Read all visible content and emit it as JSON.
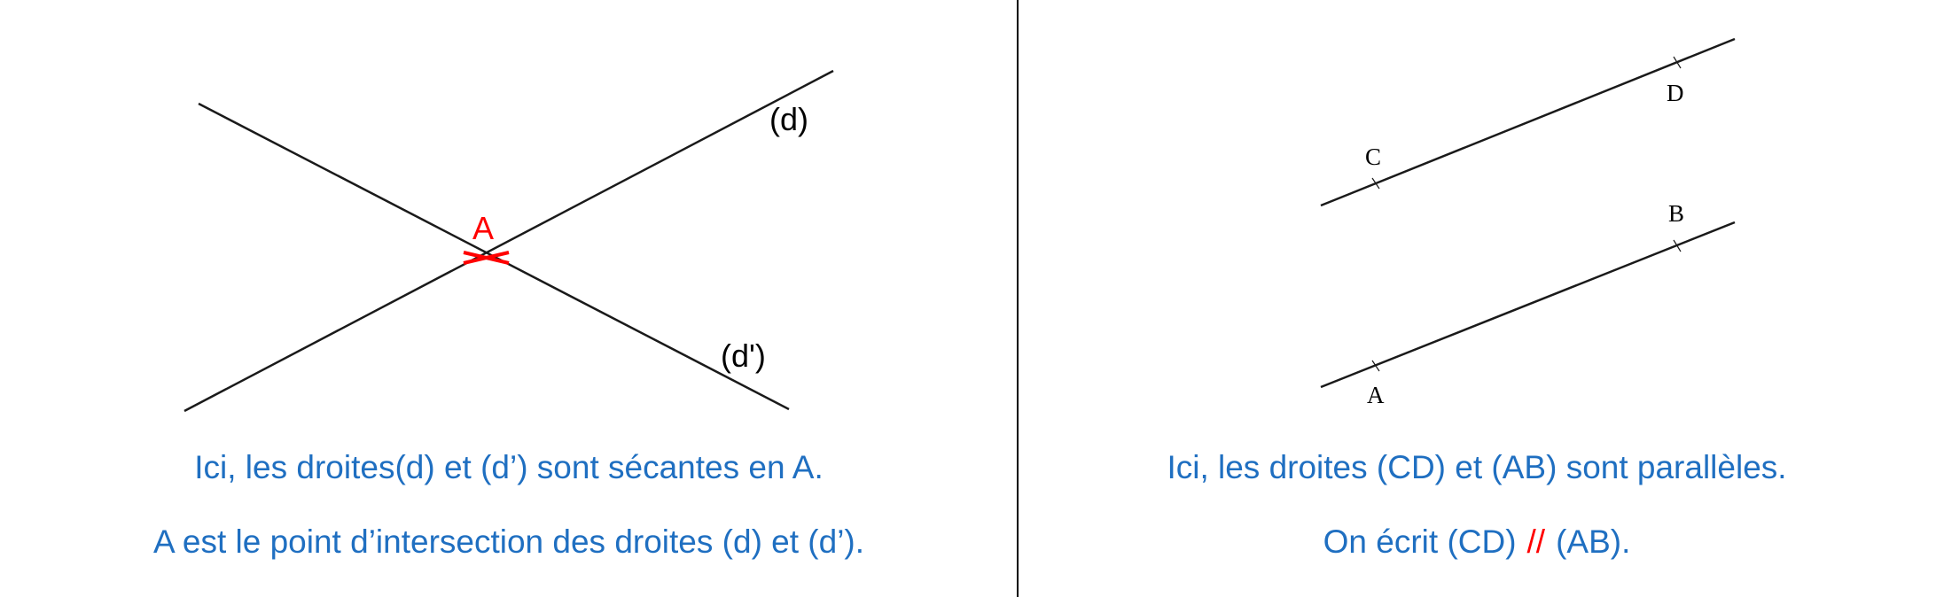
{
  "left_panel": {
    "line_d_label": "(d)",
    "line_d_prime_label": "(d')",
    "point_label": "A",
    "caption_line1": "Ici, les droites(d) et (d’) sont sécantes en A.",
    "caption_line2": "A est le point d’intersection des droites (d) et (d’)."
  },
  "right_panel": {
    "point_c": "C",
    "point_d": "D",
    "point_a": "A",
    "point_b": "B",
    "caption_line1": "Ici, les droites (CD) et (AB) sont parallèles.",
    "caption_line2_left": "On écrit (CD)",
    "caption_parallel_symbol": "//",
    "caption_line2_right": "(AB)."
  },
  "colors": {
    "caption": "#1f6fc1",
    "highlight": "#ff0000",
    "lines": "#1a1a1a"
  }
}
